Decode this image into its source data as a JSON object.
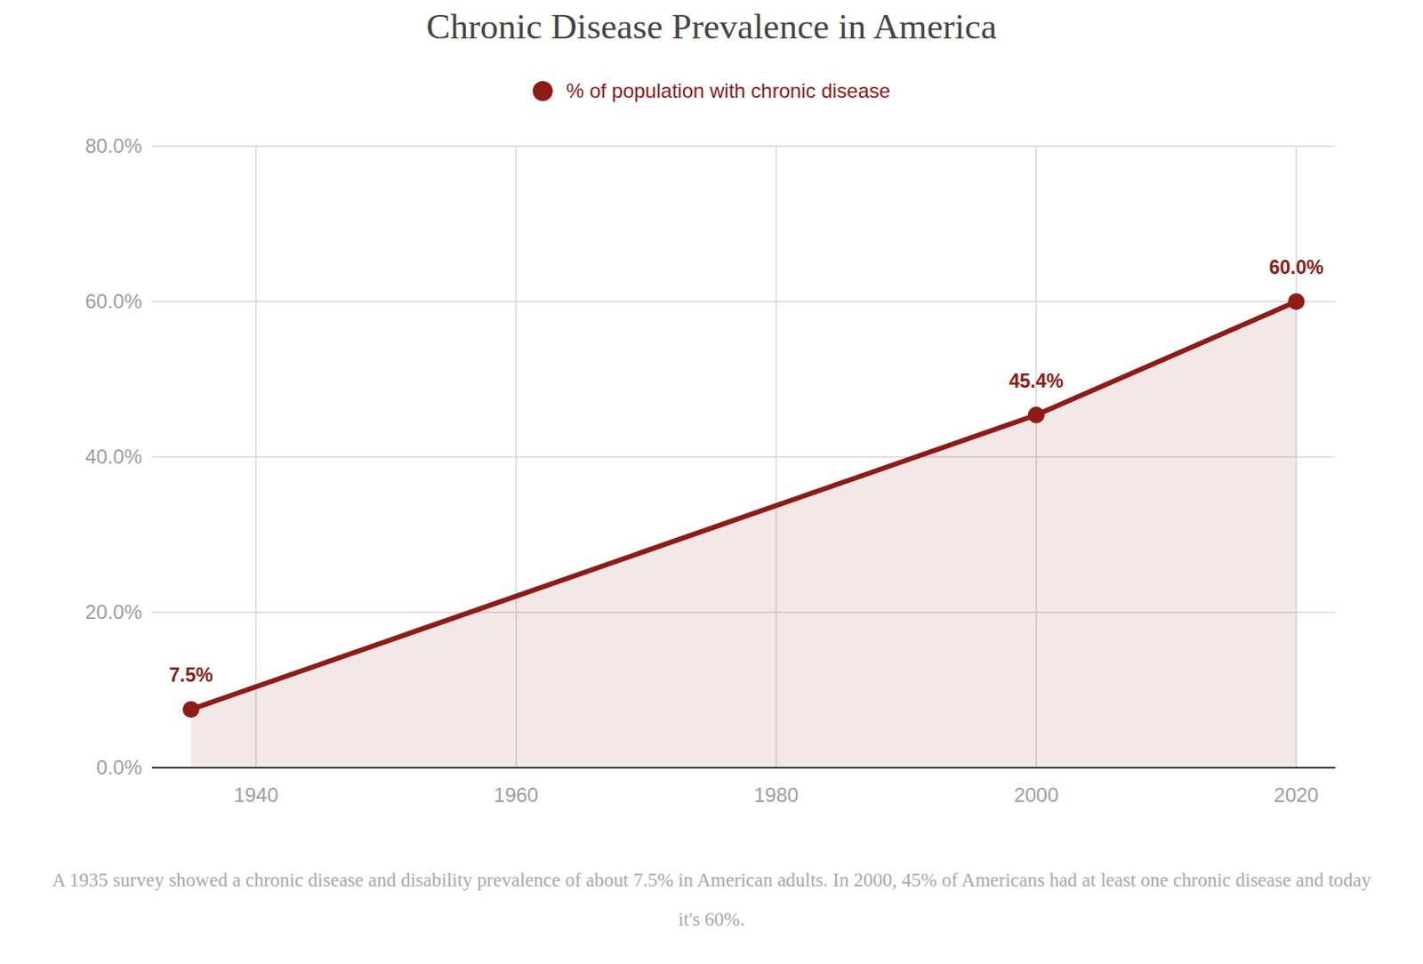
{
  "chart_data": {
    "type": "area",
    "title": "Chronic Disease Prevalence in America",
    "caption": "A 1935 survey showed a chronic disease and disability prevalence of about 7.5% in American adults. In 2000, 45% of Americans had at least one chronic disease and today it's 60%.",
    "x": [
      1935,
      2000,
      2020
    ],
    "series": [
      {
        "name": "% of population with chronic disease",
        "color": "#8e1b16",
        "marker": "circle",
        "values": [
          7.5,
          45.4,
          60.0
        ],
        "value_labels": [
          "7.5%",
          "45.4%",
          "60.0%"
        ]
      }
    ],
    "xlim": [
      1932,
      2023
    ],
    "xticks": [
      1940,
      1960,
      1980,
      2000,
      2020
    ],
    "ylim": [
      0,
      80
    ],
    "yticks": [
      {
        "value": 0,
        "label": "0.0%"
      },
      {
        "value": 20,
        "label": "20.0%"
      },
      {
        "value": 40,
        "label": "40.0%"
      },
      {
        "value": 60,
        "label": "60.0%"
      },
      {
        "value": 80,
        "label": "80.0%"
      }
    ],
    "grid": true,
    "data_labels": true,
    "legend": "top"
  }
}
